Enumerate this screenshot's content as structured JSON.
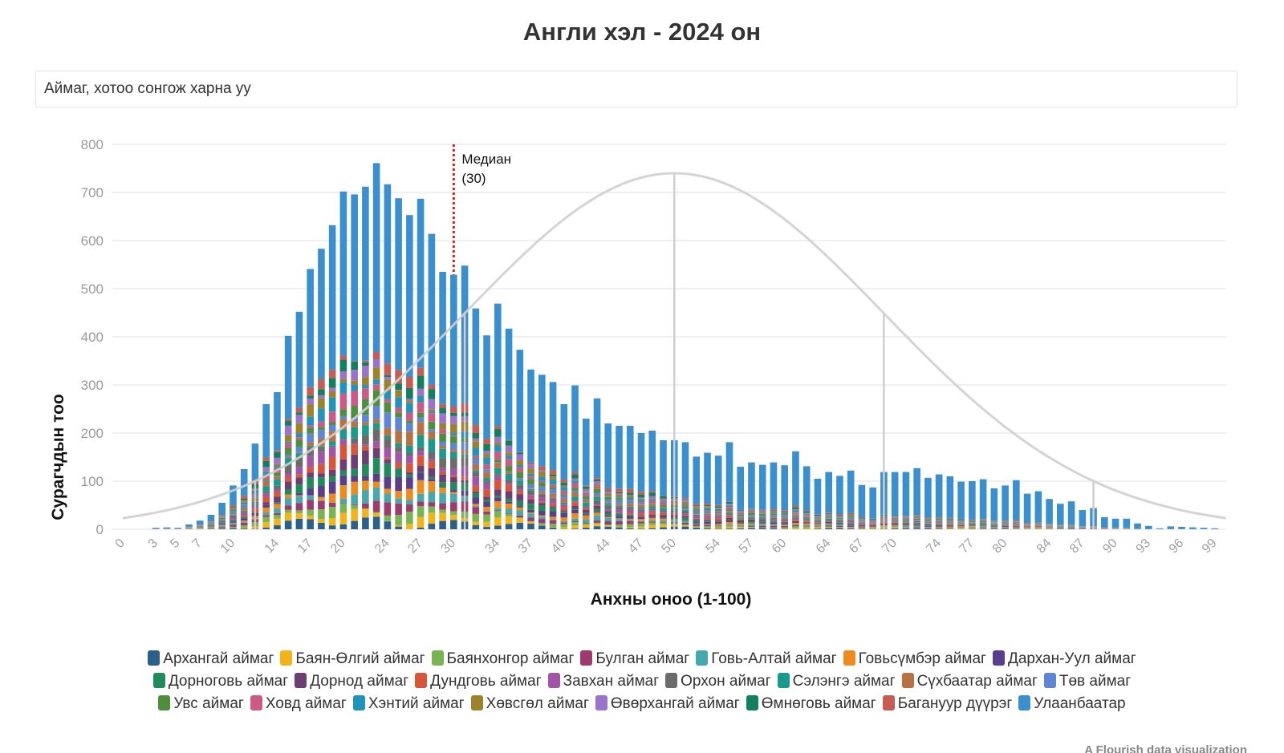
{
  "title": "Англи хэл - 2024 он",
  "selector": {
    "placeholder": "Аймаг, хотоо сонгож харна уу"
  },
  "credit": "A Flourish data visualization",
  "chart_data": {
    "type": "bar",
    "stacked": true,
    "title": "Англи хэл - 2024 он",
    "xlabel": "Анхны оноо (1-100)",
    "ylabel": "Сурагчдын тоо",
    "ylim": [
      0,
      800
    ],
    "yticks": [
      0,
      100,
      200,
      300,
      400,
      500,
      600,
      700,
      800
    ],
    "x_tick_labels": [
      0,
      3,
      5,
      7,
      10,
      14,
      17,
      20,
      24,
      27,
      30,
      34,
      37,
      40,
      44,
      47,
      50,
      54,
      57,
      60,
      64,
      67,
      70,
      74,
      77,
      80,
      84,
      87,
      90,
      93,
      96,
      99
    ],
    "grid": true,
    "legend_position": "bottom",
    "x": [
      0,
      3,
      4,
      5,
      6,
      7,
      8,
      9,
      10,
      11,
      12,
      13,
      14,
      15,
      16,
      17,
      18,
      19,
      20,
      21,
      22,
      23,
      24,
      25,
      26,
      27,
      28,
      29,
      30,
      31,
      32,
      33,
      34,
      35,
      36,
      37,
      38,
      39,
      40,
      41,
      42,
      43,
      44,
      45,
      46,
      47,
      48,
      49,
      50,
      51,
      52,
      53,
      54,
      55,
      56,
      57,
      58,
      59,
      60,
      61,
      62,
      63,
      64,
      65,
      66,
      67,
      68,
      69,
      70,
      71,
      72,
      73,
      74,
      75,
      76,
      77,
      78,
      79,
      80,
      81,
      82,
      83,
      84,
      85,
      86,
      87,
      88,
      89,
      90,
      91,
      92,
      93,
      94,
      95,
      96,
      97,
      98,
      99
    ],
    "totals": [
      0,
      3,
      4,
      3,
      10,
      18,
      30,
      55,
      91,
      125,
      178,
      260,
      285,
      402,
      452,
      541,
      583,
      632,
      702,
      696,
      712,
      761,
      717,
      688,
      653,
      687,
      614,
      535,
      529,
      548,
      459,
      403,
      469,
      417,
      373,
      332,
      321,
      306,
      260,
      299,
      230,
      272,
      220,
      215,
      215,
      200,
      205,
      185,
      185,
      181,
      151,
      159,
      153,
      181,
      130,
      139,
      134,
      139,
      133,
      162,
      131,
      105,
      119,
      111,
      122,
      92,
      87,
      119,
      119,
      119,
      127,
      107,
      114,
      110,
      99,
      100,
      104,
      85,
      91,
      102,
      74,
      79,
      63,
      53,
      58,
      40,
      44,
      25,
      22,
      22,
      12,
      7,
      2,
      6,
      5,
      4,
      3,
      2
    ],
    "series": [
      {
        "name": "Архангай аймаг",
        "color": "#2b5f8c"
      },
      {
        "name": "Баян-Өлгий аймаг",
        "color": "#f2b419"
      },
      {
        "name": "Баянхонгор аймаг",
        "color": "#77b553"
      },
      {
        "name": "Булган аймаг",
        "color": "#9e3a6f"
      },
      {
        "name": "Говь-Алтай аймаг",
        "color": "#45a8ad"
      },
      {
        "name": "Говьсүмбэр аймаг",
        "color": "#ef8a1f"
      },
      {
        "name": "Дархан-Уул аймаг",
        "color": "#5a3d8c"
      },
      {
        "name": "Дорноговь аймаг",
        "color": "#1f8a5a"
      },
      {
        "name": "Дорнод аймаг",
        "color": "#6b3f73"
      },
      {
        "name": "Дундговь аймаг",
        "color": "#d95538"
      },
      {
        "name": "Завхан аймаг",
        "color": "#a154a8"
      },
      {
        "name": "Орхон аймаг",
        "color": "#6b6b6b"
      },
      {
        "name": "Сэлэнгэ аймаг",
        "color": "#1a9a8c"
      },
      {
        "name": "Сүхбаатар аймаг",
        "color": "#b87142"
      },
      {
        "name": "Төв аймаг",
        "color": "#5d86d6"
      },
      {
        "name": "Увс аймаг",
        "color": "#4d8f3c"
      },
      {
        "name": "Ховд аймаг",
        "color": "#cc5a84"
      },
      {
        "name": "Хэнтий аймаг",
        "color": "#2094bd"
      },
      {
        "name": "Хөвсгөл аймаг",
        "color": "#9c8229"
      },
      {
        "name": "Өвөрхангай аймаг",
        "color": "#9b72cc"
      },
      {
        "name": "Өмнөговь аймаг",
        "color": "#12805e"
      },
      {
        "name": "Багануур дүүрэг",
        "color": "#c75c52"
      },
      {
        "name": "Улаанбаатар",
        "color": "#3a8fcf"
      }
    ],
    "median": {
      "x": 30,
      "label_line1": "Медиан",
      "label_line2": "(30)",
      "color": "#e02020"
    },
    "reference_curve": {
      "mean": 50,
      "peak": 740,
      "sd": 19,
      "color": "#cfcfcf"
    }
  }
}
